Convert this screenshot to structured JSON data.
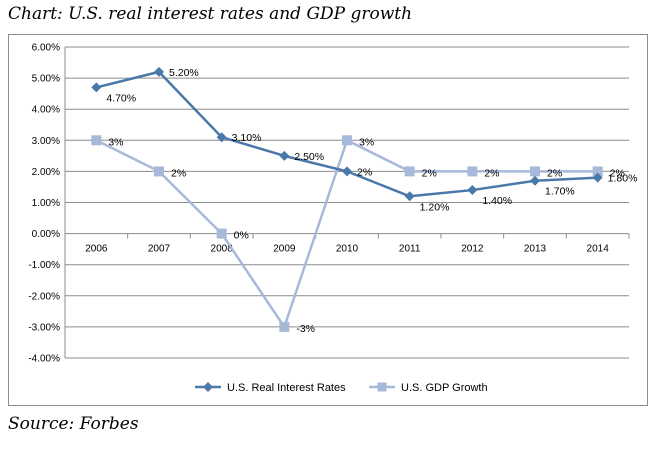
{
  "title": "Chart: U.S. real interest rates and GDP growth",
  "source": "Source: Forbes",
  "chart_data": {
    "type": "line",
    "title": "Chart: U.S. real interest rates and GDP growth",
    "xlabel": "",
    "ylabel": "",
    "categories": [
      "2006",
      "2007",
      "2008",
      "2009",
      "2010",
      "2011",
      "2012",
      "2013",
      "2014"
    ],
    "ylim": [
      -4,
      6
    ],
    "y_ticks": [
      6,
      5,
      4,
      3,
      2,
      1,
      0,
      -1,
      -2,
      -3,
      -4
    ],
    "y_tick_labels": [
      "6.00%",
      "5.00%",
      "4.00%",
      "3.00%",
      "2.00%",
      "1.00%",
      "0.00%",
      "-1.00%",
      "-2.00%",
      "-3.00%",
      "-4.00%"
    ],
    "grid": true,
    "legend_position": "bottom",
    "series": [
      {
        "name": "U.S. Real Interest Rates",
        "color": "#4a78a8",
        "marker": "diamond",
        "values": [
          4.7,
          5.2,
          3.1,
          2.5,
          2.0,
          1.2,
          1.4,
          1.7,
          1.8
        ],
        "labels": [
          "4.70%",
          "5.20%",
          "3.10%",
          "2.50%",
          "2%",
          "1.20%",
          "1.40%",
          "1.70%",
          "1.80%"
        ]
      },
      {
        "name": "U.S. GDP Growth",
        "color": "#a6b9d9",
        "marker": "square",
        "values": [
          3,
          2,
          0,
          -3,
          3,
          2,
          2,
          2,
          2
        ],
        "labels": [
          "3%",
          "2%",
          "0%",
          "-3%",
          "3%",
          "2%",
          "2%",
          "2%",
          "2%"
        ]
      }
    ]
  }
}
